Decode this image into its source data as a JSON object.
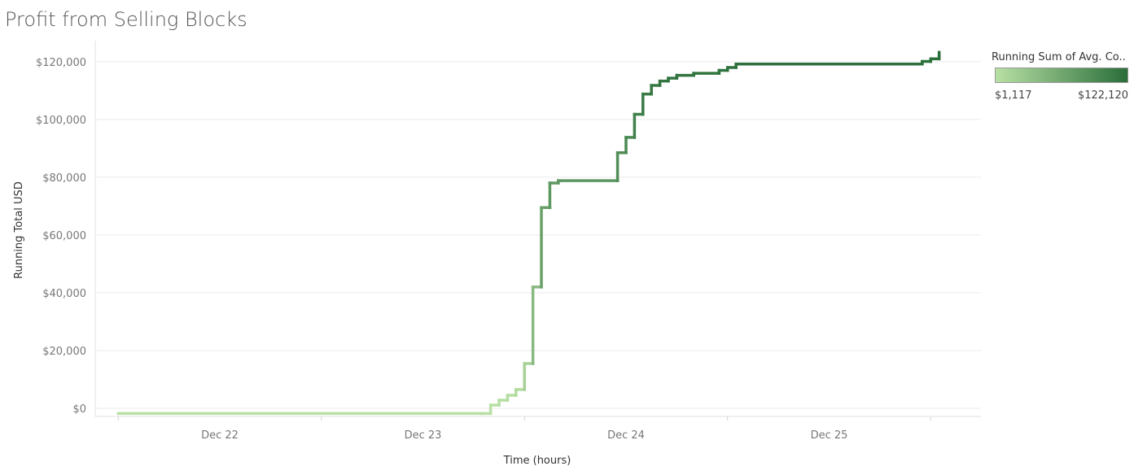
{
  "chart_data": {
    "type": "line",
    "title": "Profit from Selling Blocks",
    "xlabel": "Time (hours)",
    "ylabel": "Running Total USD",
    "x_tick_labels": [
      "Dec 22",
      "Dec 23",
      "Dec 24",
      "Dec 25"
    ],
    "y_tick_labels": [
      "$0",
      "$20,000",
      "$40,000",
      "$60,000",
      "$80,000",
      "$100,000",
      "$120,000"
    ],
    "ylim": [
      0,
      125000
    ],
    "grid": true,
    "step": true,
    "series": [
      {
        "points": [
          {
            "x": "2023-12-21 12:00",
            "y": -1800
          },
          {
            "x": "2023-12-23 07:00",
            "y": -1800
          },
          {
            "x": "2023-12-23 08:00",
            "y": 1117
          },
          {
            "x": "2023-12-23 09:00",
            "y": 2800
          },
          {
            "x": "2023-12-23 10:00",
            "y": 4500
          },
          {
            "x": "2023-12-23 11:00",
            "y": 6500
          },
          {
            "x": "2023-12-23 12:00",
            "y": 15500
          },
          {
            "x": "2023-12-23 13:00",
            "y": 42000
          },
          {
            "x": "2023-12-23 14:00",
            "y": 69500
          },
          {
            "x": "2023-12-23 15:00",
            "y": 78000
          },
          {
            "x": "2023-12-23 16:00",
            "y": 78800
          },
          {
            "x": "2023-12-23 23:00",
            "y": 88500
          },
          {
            "x": "2023-12-24 00:00",
            "y": 93800
          },
          {
            "x": "2023-12-24 01:00",
            "y": 101800
          },
          {
            "x": "2023-12-24 02:00",
            "y": 108800
          },
          {
            "x": "2023-12-24 03:00",
            "y": 111800
          },
          {
            "x": "2023-12-24 04:00",
            "y": 113300
          },
          {
            "x": "2023-12-24 05:00",
            "y": 114300
          },
          {
            "x": "2023-12-24 06:00",
            "y": 115300
          },
          {
            "x": "2023-12-24 08:00",
            "y": 116000
          },
          {
            "x": "2023-12-24 11:00",
            "y": 117000
          },
          {
            "x": "2023-12-24 12:00",
            "y": 118000
          },
          {
            "x": "2023-12-24 13:00",
            "y": 119200
          },
          {
            "x": "2023-12-25 11:00",
            "y": 120100
          },
          {
            "x": "2023-12-25 12:00",
            "y": 121000
          },
          {
            "x": "2023-12-25 13:00",
            "y": 122120
          }
        ]
      }
    ],
    "legend": {
      "title": "Running Sum of Avg. Co..",
      "min_label": "$1,117",
      "max_label": "$122,120",
      "color_min": "#b8e0a4",
      "color_max": "#2a6e3a",
      "placement": "right"
    }
  }
}
